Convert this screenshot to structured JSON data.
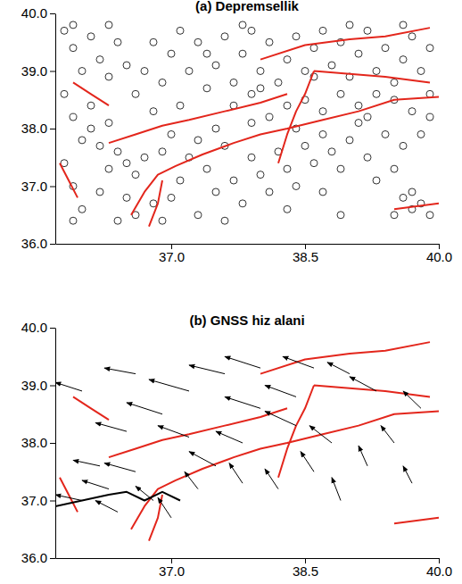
{
  "chart_data": [
    {
      "type": "scatter",
      "title": "(a) Depremsellik",
      "xlim": [
        35.7,
        40.0
      ],
      "ylim": [
        36.0,
        40.0
      ],
      "xticks": [
        {
          "value": 37,
          "label": "37.0"
        },
        {
          "value": 38.5,
          "label": "38.5"
        },
        {
          "value": 40,
          "label": "40.0"
        }
      ],
      "yticks": [
        {
          "value": 36,
          "label": "36.0"
        },
        {
          "value": 37,
          "label": "37.0"
        },
        {
          "value": 38,
          "label": "38.0"
        },
        {
          "value": 39,
          "label": "39.0"
        },
        {
          "value": 40,
          "label": "40.0"
        }
      ],
      "series": [
        {
          "type": "scatter",
          "color": "#000000",
          "marker": "circle",
          "x": [
            35.8,
            35.9,
            36.0,
            36.1,
            36.2,
            36.3,
            36.4,
            36.5,
            35.8,
            35.9,
            36.0,
            36.1,
            35.8,
            35.9,
            36.0,
            36.2,
            36.3,
            36.2,
            36.4,
            36.5,
            36.6,
            36.7,
            36.5,
            36.6,
            36.8,
            36.9,
            37.0,
            37.1,
            36.9,
            37.0,
            37.2,
            37.3,
            36.8,
            36.6,
            36.7,
            36.9,
            37.0,
            37.1,
            37.3,
            37.2,
            37.4,
            37.5,
            37.6,
            37.7,
            37.8,
            37.9,
            38.0,
            38.1,
            38.2,
            38.3,
            38.4,
            38.5,
            38.6,
            38.7,
            38.8,
            38.9,
            39.0,
            39.1,
            39.2,
            39.3,
            39.4,
            39.5,
            39.6,
            39.7,
            39.8,
            39.9,
            39.9,
            39.7,
            39.5,
            39.3,
            39.1,
            38.9,
            38.7,
            38.5,
            38.3,
            38.1,
            37.9,
            37.7,
            37.5,
            37.6,
            37.4,
            37.5,
            37.3,
            37.7,
            37.8,
            37.9,
            38.0,
            38.1,
            38.2,
            38.3,
            38.4,
            38.5,
            38.6,
            38.7,
            38.8,
            38.9,
            38.7,
            39.0,
            39.1,
            39.2,
            39.4,
            39.6,
            39.8,
            39.9,
            39.3,
            39.5,
            39.7,
            39.6,
            39.8,
            39.7,
            39.5,
            39.9,
            38.9,
            38.3,
            37.6,
            36.4,
            35.9,
            36.1,
            36.3,
            37.1,
            37.9,
            38.4,
            38.0,
            39.2,
            38.6,
            37.4,
            36.8,
            36.3,
            35.9,
            37.8,
            39.0,
            39.6
          ],
          "y": [
            39.7,
            39.4,
            39.0,
            39.6,
            39.2,
            38.9,
            39.5,
            39.1,
            38.6,
            38.2,
            37.8,
            38.4,
            37.4,
            37.0,
            36.6,
            36.9,
            37.3,
            37.7,
            37.6,
            37.4,
            37.2,
            37.5,
            36.8,
            36.5,
            36.7,
            36.4,
            36.8,
            37.1,
            37.6,
            37.9,
            37.5,
            37.8,
            38.3,
            38.6,
            39.0,
            38.8,
            39.3,
            39.7,
            39.5,
            39.0,
            38.7,
            39.1,
            39.6,
            38.8,
            39.3,
            39.7,
            39.0,
            39.5,
            38.8,
            39.2,
            39.6,
            39.0,
            39.4,
            39.7,
            39.1,
            39.5,
            38.9,
            39.3,
            39.7,
            39.0,
            39.4,
            38.8,
            39.2,
            39.6,
            39.0,
            39.4,
            38.6,
            38.3,
            38.5,
            38.6,
            38.4,
            38.6,
            38.3,
            38.5,
            38.4,
            38.2,
            38.1,
            38.4,
            38.0,
            37.7,
            37.3,
            36.9,
            36.5,
            37.1,
            36.7,
            37.5,
            37.2,
            36.9,
            37.6,
            37.3,
            37.0,
            37.7,
            37.4,
            37.9,
            37.6,
            37.3,
            36.9,
            37.8,
            38.1,
            37.5,
            37.9,
            37.7,
            37.9,
            38.2,
            37.1,
            37.3,
            36.9,
            36.8,
            36.7,
            36.6,
            36.5,
            36.5,
            36.5,
            36.6,
            36.4,
            36.4,
            36.4,
            38.0,
            38.1,
            38.4,
            38.6,
            38.0,
            38.7,
            38.2,
            38.9,
            39.3,
            39.5,
            39.8,
            39.8,
            39.8,
            39.8,
            39.8
          ]
        },
        {
          "type": "line",
          "color": "#e3261c",
          "x": [
            36.55,
            36.7,
            36.85,
            37.05,
            37.35,
            37.7,
            38.0,
            38.3,
            38.7,
            39.1,
            39.5,
            40.0,
            null,
            36.3,
            36.6,
            36.9,
            37.2,
            37.6,
            38.0,
            38.3,
            null,
            38.2,
            38.3,
            38.4,
            38.5,
            38.6,
            null,
            38.0,
            38.5,
            39.0,
            39.4,
            39.9,
            null,
            38.6,
            39.0,
            39.4,
            39.9,
            null,
            35.9,
            36.1,
            36.3,
            null,
            39.5,
            40.0,
            null,
            35.75,
            35.85,
            35.95,
            null,
            36.75,
            36.85,
            36.9
          ],
          "y": [
            36.5,
            36.9,
            37.2,
            37.35,
            37.55,
            37.75,
            37.9,
            38.0,
            38.15,
            38.3,
            38.5,
            38.55,
            null,
            37.75,
            37.9,
            38.05,
            38.15,
            38.3,
            38.45,
            38.6,
            null,
            37.4,
            37.9,
            38.3,
            38.6,
            39.0,
            null,
            39.2,
            39.45,
            39.55,
            39.6,
            39.75,
            null,
            39.0,
            38.95,
            38.9,
            38.8,
            null,
            38.8,
            38.6,
            38.4,
            null,
            36.6,
            36.7,
            null,
            37.4,
            37.1,
            36.8,
            null,
            36.3,
            36.7,
            37.1
          ]
        }
      ]
    },
    {
      "type": "quiver",
      "title": "(b) GNSS hiz alani",
      "xlim": [
        35.7,
        40.0
      ],
      "ylim": [
        36.0,
        40.0
      ],
      "xticks": [
        {
          "value": 37,
          "label": "37.0"
        },
        {
          "value": 38.5,
          "label": "38.5"
        },
        {
          "value": 40,
          "label": "40.0"
        }
      ],
      "yticks": [
        {
          "value": 36,
          "label": "36.0"
        },
        {
          "value": 37,
          "label": "37.0"
        },
        {
          "value": 38,
          "label": "38.0"
        },
        {
          "value": 39,
          "label": "39.0"
        },
        {
          "value": 40,
          "label": "40.0"
        }
      ],
      "series": [
        {
          "type": "line",
          "color": "#e3261c",
          "x": [
            36.55,
            36.7,
            36.85,
            37.05,
            37.35,
            37.7,
            38.0,
            38.3,
            38.7,
            39.1,
            39.5,
            40.0,
            null,
            36.3,
            36.6,
            36.9,
            37.2,
            37.6,
            38.0,
            38.3,
            null,
            38.2,
            38.3,
            38.4,
            38.5,
            38.6,
            null,
            38.0,
            38.5,
            39.0,
            39.4,
            39.9,
            null,
            38.6,
            39.0,
            39.4,
            39.9,
            null,
            35.9,
            36.1,
            36.3,
            null,
            39.5,
            40.0,
            null,
            35.75,
            35.85,
            35.95,
            null,
            36.75,
            36.85,
            36.9
          ],
          "y": [
            36.5,
            36.9,
            37.2,
            37.35,
            37.55,
            37.75,
            37.9,
            38.0,
            38.15,
            38.3,
            38.5,
            38.55,
            null,
            37.75,
            37.9,
            38.05,
            38.15,
            38.3,
            38.45,
            38.6,
            null,
            37.4,
            37.9,
            38.3,
            38.6,
            39.0,
            null,
            39.2,
            39.45,
            39.55,
            39.6,
            39.75,
            null,
            39.0,
            38.95,
            38.9,
            38.8,
            null,
            38.8,
            38.6,
            38.4,
            null,
            36.6,
            36.7,
            null,
            37.4,
            37.1,
            36.8,
            null,
            36.3,
            36.7,
            37.1
          ]
        },
        {
          "type": "line",
          "color": "#000000",
          "x": [
            35.7,
            36.0,
            36.3,
            36.5,
            36.7,
            36.9,
            37.1
          ],
          "y": [
            36.9,
            37.0,
            37.1,
            37.15,
            37.0,
            37.15,
            37.0
          ]
        },
        {
          "type": "quiver",
          "color": "#000000",
          "x": [
            36.0,
            36.3,
            36.4,
            36.6,
            36.2,
            36.8,
            36.5,
            36.9,
            37.2,
            37.6,
            37.2,
            37.5,
            37.0,
            37.3,
            37.8,
            38.0,
            38.4,
            38.0,
            38.6,
            39.0,
            39.3,
            38.2,
            38.6,
            38.9,
            39.2,
            39.5,
            39.7,
            38.8,
            38.4,
            39.8,
            36.0,
            36.6,
            37.8
          ],
          "y": [
            37.0,
            37.2,
            36.8,
            37.5,
            37.6,
            37.0,
            38.2,
            38.5,
            38.9,
            39.2,
            38.1,
            37.6,
            36.7,
            37.2,
            37.3,
            38.6,
            38.8,
            39.3,
            39.3,
            39.2,
            38.9,
            37.2,
            37.5,
            37.0,
            37.6,
            38.0,
            37.3,
            38.0,
            38.3,
            38.6,
            38.9,
            39.2,
            38.0
          ],
          "u": [
            -0.3,
            -0.3,
            -0.25,
            -0.35,
            -0.3,
            -0.2,
            -0.35,
            -0.4,
            -0.45,
            -0.4,
            -0.35,
            -0.3,
            -0.15,
            -0.15,
            -0.15,
            -0.4,
            -0.35,
            -0.4,
            -0.35,
            -0.25,
            -0.3,
            -0.15,
            -0.15,
            -0.1,
            -0.1,
            -0.15,
            -0.1,
            -0.25,
            -0.35,
            -0.2,
            -0.3,
            -0.35,
            -0.3
          ],
          "v": [
            0.1,
            0.15,
            0.2,
            0.15,
            0.1,
            0.25,
            0.15,
            0.2,
            0.2,
            0.15,
            0.2,
            0.25,
            0.35,
            0.3,
            0.35,
            0.2,
            0.2,
            0.2,
            0.2,
            0.2,
            0.25,
            0.35,
            0.35,
            0.4,
            0.35,
            0.3,
            0.3,
            0.3,
            0.25,
            0.3,
            0.15,
            0.1,
            0.2
          ]
        }
      ]
    }
  ]
}
